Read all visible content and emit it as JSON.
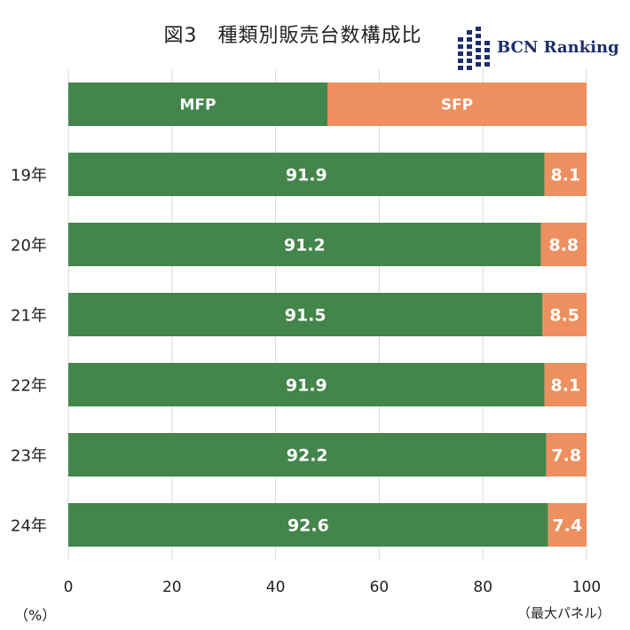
{
  "title": "図3　種類別販売台数構成比",
  "brand": {
    "name": "BCN Ranking",
    "color": "#1c2f6b"
  },
  "colors": {
    "mfp": "#43854b",
    "sfp": "#ee8f5f",
    "grid": "#d9d9d9"
  },
  "units": {
    "left": "（%）",
    "right": "（最大パネル）"
  },
  "chart_data": {
    "type": "bar",
    "orientation": "horizontal",
    "stacked": true,
    "legend_bar": [
      "MFP",
      "SFP"
    ],
    "categories": [
      "19年",
      "20年",
      "21年",
      "22年",
      "23年",
      "24年"
    ],
    "series": [
      {
        "name": "MFP",
        "values": [
          91.9,
          91.2,
          91.5,
          91.9,
          92.2,
          92.6
        ]
      },
      {
        "name": "SFP",
        "values": [
          8.1,
          8.8,
          8.5,
          8.1,
          7.8,
          7.4
        ]
      }
    ],
    "xlim": [
      0,
      100
    ],
    "xticks": [
      "0",
      "20",
      "40",
      "60",
      "80",
      "100"
    ],
    "grid": true
  }
}
